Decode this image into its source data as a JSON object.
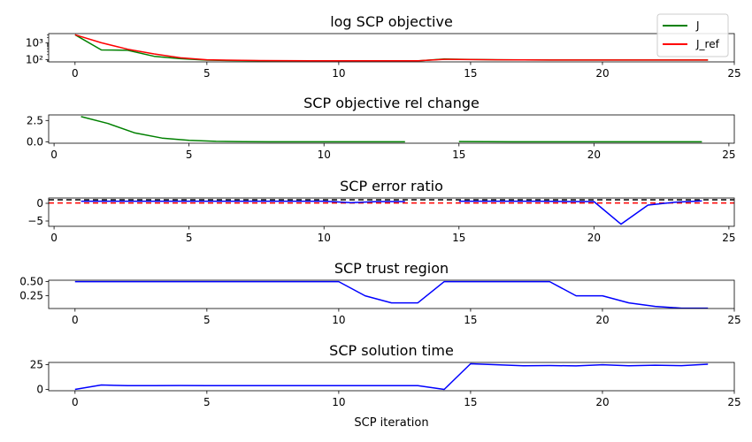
{
  "chart_data": [
    {
      "type": "line",
      "title": "log SCP objective",
      "yscale": "log",
      "xlim": [
        -1,
        25
      ],
      "ylim": [
        75,
        3500
      ],
      "xticks": [
        0,
        5,
        10,
        15,
        20,
        25
      ],
      "yticks": [
        {
          "v": 1000,
          "label": "10³"
        },
        {
          "v": 100,
          "label": "10²"
        }
      ],
      "legend": {
        "placement": "top-right"
      },
      "series": [
        {
          "name": "J",
          "color": "#008000",
          "x": [
            0,
            1,
            2,
            3,
            4,
            5,
            6,
            7,
            8,
            9,
            10,
            11,
            12,
            13,
            14,
            15,
            16,
            17,
            18,
            19,
            20,
            21,
            22,
            23,
            24
          ],
          "y": [
            3000,
            380,
            360,
            160,
            115,
            95,
            90,
            88,
            87,
            86,
            86,
            86,
            86,
            86,
            110,
            105,
            100,
            98,
            97,
            96,
            96,
            96,
            96,
            96,
            96
          ]
        },
        {
          "name": "J_ref",
          "color": "#ff0000",
          "x": [
            0,
            1,
            2,
            3,
            4,
            5,
            6,
            7,
            8,
            9,
            10,
            11,
            12,
            13,
            14,
            15,
            16,
            17,
            18,
            19,
            20,
            21,
            22,
            23,
            24
          ],
          "y": [
            3000,
            1000,
            420,
            220,
            130,
            100,
            94,
            90,
            89,
            88,
            88,
            88,
            88,
            88,
            106,
            102,
            100,
            98,
            97,
            96,
            96,
            96,
            96,
            96,
            96
          ]
        }
      ]
    },
    {
      "type": "line",
      "title": "SCP objective rel change",
      "xlim": [
        -0.2,
        25.2
      ],
      "ylim": [
        -0.15,
        3.15
      ],
      "xticks": [
        0,
        5,
        10,
        15,
        20,
        25
      ],
      "yticks": [
        {
          "v": 2.5,
          "label": "2.5"
        },
        {
          "v": 0,
          "label": "0.0"
        }
      ],
      "series": [
        {
          "color": "#008000",
          "x": [
            1,
            2,
            3,
            4,
            5,
            6,
            7,
            8,
            9,
            10,
            11,
            12,
            13
          ],
          "y": [
            2.95,
            2.15,
            1.05,
            0.45,
            0.18,
            0.07,
            0.04,
            0.02,
            0.01,
            0.01,
            0.01,
            0.01,
            0.01
          ]
        },
        {
          "color": "#008000",
          "x": [
            15,
            16,
            17,
            18,
            19,
            20,
            21,
            22,
            23,
            24
          ],
          "y": [
            0.05,
            0.03,
            0.02,
            0.01,
            0.01,
            0.01,
            0.01,
            0.01,
            0.01,
            0.01
          ]
        }
      ]
    },
    {
      "type": "line",
      "title": "SCP error ratio",
      "xlim": [
        -0.2,
        25.2
      ],
      "ylim": [
        -6.5,
        1.5
      ],
      "xticks": [
        0,
        5,
        10,
        15,
        20,
        25
      ],
      "yticks": [
        {
          "v": 0,
          "label": "0"
        },
        {
          "v": -5,
          "label": "−5"
        }
      ],
      "hlines": [
        {
          "y": 1.0,
          "color": "#000000",
          "style": "dashed"
        },
        {
          "y": 0.1,
          "color": "#ff0000",
          "style": "dashed"
        }
      ],
      "series": [
        {
          "color": "#0000ff",
          "x": [
            1,
            2,
            3,
            4,
            5,
            6,
            7,
            8,
            9,
            10,
            11,
            12,
            13
          ],
          "y": [
            0.6,
            0.6,
            0.6,
            0.6,
            0.6,
            0.6,
            0.6,
            0.6,
            0.6,
            0.6,
            0.2,
            0.5,
            0.5
          ]
        },
        {
          "color": "#0000ff",
          "x": [
            15,
            16,
            17,
            18,
            19,
            20,
            21,
            22,
            23,
            24
          ],
          "y": [
            0.6,
            0.6,
            0.6,
            0.6,
            0.5,
            0.5,
            -5.9,
            -0.5,
            0.3,
            0.7
          ]
        }
      ]
    },
    {
      "type": "line",
      "title": "SCP trust region",
      "xlim": [
        -1,
        25
      ],
      "ylim": [
        0.025,
        0.525
      ],
      "xticks": [
        0,
        5,
        10,
        15,
        20,
        25
      ],
      "yticks": [
        {
          "v": 0.5,
          "label": "0.50"
        },
        {
          "v": 0.25,
          "label": "0.25"
        }
      ],
      "series": [
        {
          "color": "#0000ff",
          "x": [
            0,
            1,
            2,
            3,
            4,
            5,
            6,
            7,
            8,
            9,
            10,
            11,
            12,
            13,
            14,
            15,
            16,
            17,
            18,
            19,
            20,
            21,
            22,
            23,
            24
          ],
          "y": [
            0.5,
            0.5,
            0.5,
            0.5,
            0.5,
            0.5,
            0.5,
            0.5,
            0.5,
            0.5,
            0.5,
            0.25,
            0.125,
            0.125,
            0.5,
            0.5,
            0.5,
            0.5,
            0.5,
            0.25,
            0.25,
            0.125,
            0.0625,
            0.03125,
            0.03125
          ]
        }
      ]
    },
    {
      "type": "line",
      "title": "SCP solution time",
      "xlabel": "SCP iteration",
      "xlim": [
        -1,
        25
      ],
      "ylim": [
        -1.3,
        27.3
      ],
      "xticks": [
        0,
        5,
        10,
        15,
        20,
        25
      ],
      "yticks": [
        {
          "v": 25,
          "label": "25"
        },
        {
          "v": 0,
          "label": "0"
        }
      ],
      "series": [
        {
          "color": "#0000ff",
          "x": [
            0,
            1,
            2,
            3,
            4,
            5,
            6,
            7,
            8,
            9,
            10,
            11,
            12,
            13,
            14,
            15,
            16,
            17,
            18,
            19,
            20,
            21,
            22,
            23,
            24
          ],
          "y": [
            0,
            4.5,
            3.8,
            3.8,
            4.0,
            3.9,
            3.8,
            3.8,
            3.8,
            3.8,
            3.8,
            3.8,
            3.8,
            3.8,
            0,
            26,
            25,
            24,
            24.2,
            23.8,
            25,
            24,
            24.5,
            24.1,
            25.5
          ]
        }
      ]
    }
  ]
}
